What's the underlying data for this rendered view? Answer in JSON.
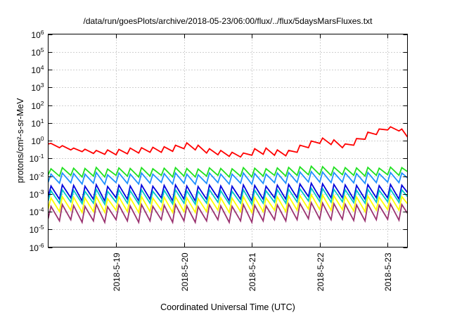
{
  "chart_data": {
    "type": "line",
    "title": "/data/run/goesPlots/archive/2018-05-23/06:00/flux/../flux/5daysMarsFluxes.txt",
    "xlabel": "Coordinated Universal Time (UTC)",
    "ylabel": "protons/cm²-s-sr-MeV",
    "yscale": "log",
    "ylim": [
      1e-06,
      1000000.0
    ],
    "xlim": [
      "2018-05-18 00:00",
      "2018-05-23 07:00"
    ],
    "grid": true,
    "legend": "none",
    "xticks": [
      {
        "value": "2018-05-19 00:00",
        "label": "2018-5-19"
      },
      {
        "value": "2018-05-20 00:00",
        "label": "2018-5-20"
      },
      {
        "value": "2018-05-21 00:00",
        "label": "2018-5-21"
      },
      {
        "value": "2018-05-22 00:00",
        "label": "2018-5-22"
      },
      {
        "value": "2018-05-23 00:00",
        "label": "2018-5-23"
      }
    ],
    "yticks": [
      {
        "value": 1000000.0,
        "base": "10",
        "exp": "6"
      },
      {
        "value": 100000.0,
        "base": "10",
        "exp": "5"
      },
      {
        "value": 10000.0,
        "base": "10",
        "exp": "4"
      },
      {
        "value": 1000.0,
        "base": "10",
        "exp": "3"
      },
      {
        "value": 100.0,
        "base": "10",
        "exp": "2"
      },
      {
        "value": 10.0,
        "base": "10",
        "exp": "1"
      },
      {
        "value": 1,
        "base": "10",
        "exp": "0"
      },
      {
        "value": 0.1,
        "base": "10",
        "exp": "-1"
      },
      {
        "value": 0.01,
        "base": "10",
        "exp": "-2"
      },
      {
        "value": 0.001,
        "base": "10",
        "exp": "-3"
      },
      {
        "value": 0.0001,
        "base": "10",
        "exp": "-4"
      },
      {
        "value": 1e-05,
        "base": "10",
        "exp": "-5"
      },
      {
        "value": 1e-06,
        "base": "10",
        "exp": "-6"
      }
    ],
    "x": [
      "2018-05-18 00:00",
      "2018-05-18 01:00",
      "2018-05-18 04:00",
      "2018-05-18 05:00",
      "2018-05-18 08:00",
      "2018-05-18 09:00",
      "2018-05-18 12:00",
      "2018-05-18 13:00",
      "2018-05-18 16:00",
      "2018-05-18 17:00",
      "2018-05-18 20:00",
      "2018-05-18 21:00",
      "2018-05-19 00:00",
      "2018-05-19 01:00",
      "2018-05-19 04:00",
      "2018-05-19 05:00",
      "2018-05-19 08:00",
      "2018-05-19 09:00",
      "2018-05-19 12:00",
      "2018-05-19 13:00",
      "2018-05-19 16:00",
      "2018-05-19 17:00",
      "2018-05-19 20:00",
      "2018-05-19 21:00",
      "2018-05-20 00:00",
      "2018-05-20 01:00",
      "2018-05-20 04:00",
      "2018-05-20 05:00",
      "2018-05-20 08:00",
      "2018-05-20 09:00",
      "2018-05-20 12:00",
      "2018-05-20 13:00",
      "2018-05-20 16:00",
      "2018-05-20 17:00",
      "2018-05-20 20:00",
      "2018-05-20 21:00",
      "2018-05-21 00:00",
      "2018-05-21 01:00",
      "2018-05-21 04:00",
      "2018-05-21 05:00",
      "2018-05-21 08:00",
      "2018-05-21 09:00",
      "2018-05-21 12:00",
      "2018-05-21 13:00",
      "2018-05-21 16:00",
      "2018-05-21 17:00",
      "2018-05-21 20:00",
      "2018-05-21 21:00",
      "2018-05-22 00:00",
      "2018-05-22 01:00",
      "2018-05-22 04:00",
      "2018-05-22 05:00",
      "2018-05-22 08:00",
      "2018-05-22 09:00",
      "2018-05-22 12:00",
      "2018-05-22 13:00",
      "2018-05-22 16:00",
      "2018-05-22 17:00",
      "2018-05-22 20:00",
      "2018-05-22 21:00",
      "2018-05-23 00:00",
      "2018-05-23 01:00",
      "2018-05-23 04:00",
      "2018-05-23 05:00",
      "2018-05-23 07:00"
    ],
    "series": [
      {
        "color": "#ff0000",
        "values": [
          0.65,
          0.7,
          0.4,
          0.52,
          0.3,
          0.38,
          0.24,
          0.33,
          0.19,
          0.28,
          0.17,
          0.3,
          0.16,
          0.32,
          0.18,
          0.38,
          0.2,
          0.4,
          0.22,
          0.42,
          0.22,
          0.45,
          0.25,
          0.55,
          0.35,
          0.75,
          0.3,
          0.55,
          0.2,
          0.35,
          0.16,
          0.28,
          0.13,
          0.22,
          0.12,
          0.2,
          0.15,
          0.35,
          0.17,
          0.38,
          0.15,
          0.3,
          0.14,
          0.28,
          0.22,
          0.55,
          0.4,
          0.95,
          0.7,
          1.4,
          0.6,
          1.1,
          0.4,
          0.65,
          0.55,
          1.3,
          1.2,
          3.0,
          2.2,
          4.5,
          4.0,
          6.0,
          3.5,
          4.5,
          1.6
        ]
      },
      {
        "color": "#20e020",
        "values": [
          0.012,
          0.026,
          0.01,
          0.03,
          0.011,
          0.028,
          0.009,
          0.027,
          0.01,
          0.031,
          0.009,
          0.025,
          0.011,
          0.029,
          0.01,
          0.027,
          0.009,
          0.03,
          0.01,
          0.026,
          0.011,
          0.028,
          0.009,
          0.03,
          0.01,
          0.027,
          0.009,
          0.025,
          0.01,
          0.029,
          0.011,
          0.027,
          0.009,
          0.026,
          0.01,
          0.03,
          0.009,
          0.028,
          0.01,
          0.026,
          0.011,
          0.029,
          0.01,
          0.031,
          0.011,
          0.033,
          0.012,
          0.036,
          0.012,
          0.034,
          0.011,
          0.032,
          0.012,
          0.03,
          0.011,
          0.029,
          0.01,
          0.031,
          0.011,
          0.028,
          0.012,
          0.032,
          0.011,
          0.03,
          0.018
        ]
      },
      {
        "color": "#1e90ff",
        "values": [
          0.0045,
          0.013,
          0.004,
          0.015,
          0.0042,
          0.014,
          0.0036,
          0.013,
          0.004,
          0.016,
          0.0035,
          0.012,
          0.0043,
          0.015,
          0.0039,
          0.013,
          0.0036,
          0.015,
          0.004,
          0.013,
          0.0044,
          0.014,
          0.0036,
          0.015,
          0.004,
          0.013,
          0.0035,
          0.012,
          0.0039,
          0.015,
          0.0043,
          0.013,
          0.0036,
          0.013,
          0.004,
          0.015,
          0.0035,
          0.014,
          0.0039,
          0.013,
          0.0043,
          0.015,
          0.004,
          0.016,
          0.0044,
          0.017,
          0.0047,
          0.018,
          0.0046,
          0.017,
          0.0043,
          0.016,
          0.0046,
          0.015,
          0.0042,
          0.014,
          0.0039,
          0.016,
          0.0043,
          0.014,
          0.0046,
          0.016,
          0.0043,
          0.015,
          0.008
        ]
      },
      {
        "color": "#0000dd",
        "values": [
          0.0007,
          0.0028,
          0.0005,
          0.0032,
          0.0006,
          0.003,
          0.0004,
          0.0027,
          0.0005,
          0.0033,
          0.0004,
          0.0026,
          0.0006,
          0.0031,
          0.0005,
          0.0028,
          0.0004,
          0.0032,
          0.0005,
          0.0027,
          0.0006,
          0.003,
          0.0004,
          0.0032,
          0.0005,
          0.0028,
          0.0004,
          0.0026,
          0.0005,
          0.0031,
          0.0006,
          0.0028,
          0.0004,
          0.0027,
          0.0005,
          0.0032,
          0.0004,
          0.003,
          0.0005,
          0.0027,
          0.0006,
          0.0031,
          0.0005,
          0.0034,
          0.0006,
          0.0036,
          0.0007,
          0.004,
          0.0006,
          0.0037,
          0.0006,
          0.0034,
          0.0006,
          0.0032,
          0.0005,
          0.003,
          0.0005,
          0.0033,
          0.0006,
          0.0029,
          0.0006,
          0.0034,
          0.0005,
          0.0031,
          0.0012
        ]
      },
      {
        "color": "#00c8c8",
        "values": [
          0.0004,
          0.0015,
          0.0003,
          0.0017,
          0.00035,
          0.0016,
          0.00028,
          0.0014,
          0.0003,
          0.0018,
          0.00026,
          0.0014,
          0.00034,
          0.0017,
          0.0003,
          0.0015,
          0.00027,
          0.0017,
          0.0003,
          0.0014,
          0.00034,
          0.0016,
          0.00027,
          0.0017,
          0.0003,
          0.0015,
          0.00026,
          0.0014,
          0.0003,
          0.0017,
          0.00034,
          0.0015,
          0.00027,
          0.0014,
          0.0003,
          0.0017,
          0.00026,
          0.0016,
          0.0003,
          0.0015,
          0.00034,
          0.0017,
          0.0003,
          0.0018,
          0.00035,
          0.0019,
          0.0004,
          0.0021,
          0.00037,
          0.002,
          0.00034,
          0.0018,
          0.00036,
          0.0017,
          0.00032,
          0.0016,
          0.0003,
          0.0018,
          0.00034,
          0.0016,
          0.00036,
          0.0018,
          0.00033,
          0.0017,
          0.0007
        ]
      },
      {
        "color": "#ffff00",
        "values": [
          0.00014,
          0.0006,
          0.0001,
          0.0007,
          0.00012,
          0.00065,
          9e-05,
          0.0006,
          0.0001,
          0.00072,
          9e-05,
          0.00055,
          0.00012,
          0.00068,
          0.0001,
          0.0006,
          9e-05,
          0.0007,
          0.0001,
          0.00058,
          0.00012,
          0.00065,
          9e-05,
          0.0007,
          0.0001,
          0.0006,
          9e-05,
          0.00055,
          0.0001,
          0.00068,
          0.00012,
          0.0006,
          9e-05,
          0.00058,
          0.0001,
          0.0007,
          9e-05,
          0.00065,
          0.0001,
          0.0006,
          0.00012,
          0.00068,
          0.0001,
          0.00075,
          0.00012,
          0.0008,
          0.00014,
          0.0009,
          0.00013,
          0.00085,
          0.00012,
          0.00078,
          0.00013,
          0.00072,
          0.00011,
          0.00068,
          0.0001,
          0.00075,
          0.00012,
          0.00065,
          0.00013,
          0.00075,
          0.00012,
          0.0007,
          0.00028
        ]
      },
      {
        "color": "#9a3370",
        "values": [
          4e-05,
          0.0002,
          3e-05,
          0.00025,
          3.5e-05,
          0.00022,
          2.5e-05,
          0.0002,
          3e-05,
          0.00026,
          2.5e-05,
          0.00019,
          3.5e-05,
          0.00024,
          3e-05,
          0.00021,
          2.5e-05,
          0.00025,
          3e-05,
          0.0002,
          3.5e-05,
          0.00023,
          2.5e-05,
          0.00025,
          3e-05,
          0.00021,
          2.5e-05,
          0.00019,
          3e-05,
          0.00024,
          3.5e-05,
          0.00021,
          2.5e-05,
          0.0002,
          3e-05,
          0.00025,
          2.5e-05,
          0.00023,
          3e-05,
          0.00021,
          3.5e-05,
          0.00024,
          3e-05,
          0.00027,
          3.5e-05,
          0.00029,
          4e-05,
          0.00032,
          3.8e-05,
          0.0003,
          3.5e-05,
          0.00028,
          3.7e-05,
          0.00026,
          3.2e-05,
          0.00024,
          3e-05,
          0.00027,
          3.5e-05,
          0.00023,
          3.7e-05,
          0.00027,
          3.3e-05,
          0.00025,
          8e-05
        ]
      }
    ]
  }
}
